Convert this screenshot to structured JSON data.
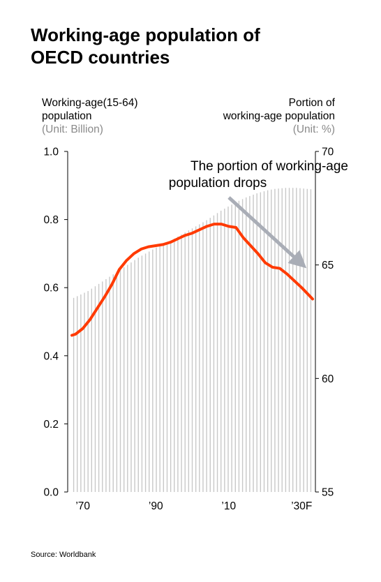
{
  "title_line1": "Working-age population of",
  "title_line2": "OECD countries",
  "left_axis": {
    "label_line1": "Working-age(15-64)",
    "label_line2": "population",
    "unit": "(Unit: Billion)"
  },
  "right_axis": {
    "label_line1": "Portion of",
    "label_line2": "working-age population",
    "unit": "(Unit: %)"
  },
  "annotation_line1": "The portion of working-age",
  "annotation_line2": "population drops",
  "source": "Source: Worldbank",
  "colors": {
    "line": "#ff3a00",
    "bars": "#c8c8c8",
    "arrow": "#a9adb6"
  },
  "chart_data": {
    "type": "bar+line",
    "x_tick_labels": [
      "’70",
      "’90",
      "’10",
      "’30F"
    ],
    "x_tick_years": [
      1970,
      1990,
      2010,
      2030
    ],
    "x_range": [
      1967,
      2033
    ],
    "left_axis": {
      "ticks": [
        "0.0",
        "0.2",
        "0.4",
        "0.6",
        "0.8",
        "1.0"
      ],
      "ylim": [
        0,
        1.0
      ]
    },
    "right_axis": {
      "ticks": [
        "55",
        "60",
        "65",
        "70"
      ],
      "ylim": [
        55,
        70
      ]
    },
    "series": [
      {
        "axis": "left",
        "type": "bar",
        "x": [
          1967,
          1968,
          1969,
          1970,
          1971,
          1972,
          1973,
          1974,
          1975,
          1976,
          1977,
          1978,
          1979,
          1980,
          1981,
          1982,
          1983,
          1984,
          1985,
          1986,
          1987,
          1988,
          1989,
          1990,
          1991,
          1992,
          1993,
          1994,
          1995,
          1996,
          1997,
          1998,
          1999,
          2000,
          2001,
          2002,
          2003,
          2004,
          2005,
          2006,
          2007,
          2008,
          2009,
          2010,
          2011,
          2012,
          2013,
          2014,
          2015,
          2016,
          2017,
          2018,
          2019,
          2020,
          2021,
          2022,
          2023,
          2024,
          2025,
          2026,
          2027,
          2028,
          2029,
          2030,
          2031,
          2032,
          2033
        ],
        "values": [
          0.57,
          0.575,
          0.58,
          0.585,
          0.59,
          0.597,
          0.604,
          0.611,
          0.618,
          0.625,
          0.632,
          0.639,
          0.646,
          0.653,
          0.66,
          0.667,
          0.674,
          0.681,
          0.688,
          0.694,
          0.7,
          0.706,
          0.712,
          0.718,
          0.723,
          0.728,
          0.733,
          0.738,
          0.744,
          0.75,
          0.756,
          0.762,
          0.768,
          0.774,
          0.78,
          0.786,
          0.792,
          0.798,
          0.805,
          0.812,
          0.819,
          0.826,
          0.832,
          0.838,
          0.844,
          0.85,
          0.855,
          0.86,
          0.865,
          0.869,
          0.873,
          0.877,
          0.88,
          0.883,
          0.886,
          0.888,
          0.89,
          0.891,
          0.892,
          0.893,
          0.893,
          0.893,
          0.893,
          0.892,
          0.891,
          0.89,
          0.889
        ]
      },
      {
        "axis": "right",
        "type": "line",
        "x": [
          1967,
          1968,
          1970,
          1972,
          1974,
          1976,
          1978,
          1980,
          1982,
          1984,
          1986,
          1988,
          1990,
          1992,
          1994,
          1996,
          1998,
          2000,
          2002,
          2004,
          2006,
          2008,
          2010,
          2012,
          2014,
          2016,
          2018,
          2020,
          2022,
          2024,
          2026,
          2028,
          2030,
          2033
        ],
        "values": [
          61.9,
          61.95,
          62.2,
          62.6,
          63.1,
          63.6,
          64.15,
          64.8,
          65.2,
          65.5,
          65.7,
          65.8,
          65.85,
          65.9,
          66.0,
          66.15,
          66.3,
          66.4,
          66.55,
          66.7,
          66.8,
          66.8,
          66.7,
          66.65,
          66.2,
          65.85,
          65.5,
          65.1,
          64.9,
          64.85,
          64.6,
          64.3,
          64.0,
          63.5
        ]
      }
    ]
  }
}
